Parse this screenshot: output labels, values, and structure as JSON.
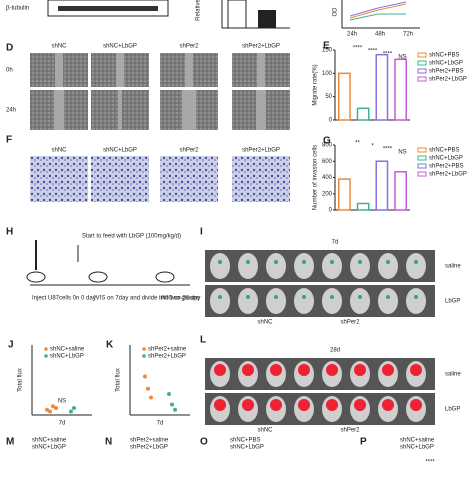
{
  "top": {
    "blot_label": "β-tubulin",
    "relative_label": "Relative",
    "od_label": "OD",
    "od_xticks": [
      "24h",
      "48h",
      "72h"
    ]
  },
  "D": {
    "label": "D",
    "columns": [
      "shNC",
      "shNC+LbGP",
      "shPer2",
      "shPer2+LbGP"
    ],
    "rows": [
      "0h",
      "24h"
    ]
  },
  "E": {
    "label": "E",
    "type": "bar",
    "y_label": "Migrate rate(%)",
    "categories": [
      "shNC+PBS",
      "shNC+LbGP",
      "shPer2+PBS",
      "shPer2+LbGP"
    ],
    "colors": [
      "#f0883a",
      "#3cb48a",
      "#8a6fe0",
      "#c45bd6"
    ],
    "values": [
      100,
      25,
      140,
      130
    ],
    "ylim": [
      0,
      150
    ],
    "yticks": [
      0,
      50,
      100,
      150
    ],
    "annotations": [
      "****",
      "****",
      "****",
      "NS"
    ]
  },
  "F": {
    "label": "F",
    "columns": [
      "shNC",
      "shNC+LbGP",
      "shPer2",
      "shPer2+LbGP"
    ]
  },
  "G": {
    "label": "G",
    "type": "bar",
    "y_label": "Number of invasion cells",
    "categories": [
      "shNC+PBS",
      "shNC+LbGP",
      "shPer2+PBS",
      "shPer2+LbGP"
    ],
    "colors": [
      "#f0883a",
      "#3cb48a",
      "#8a6fe0",
      "#c45bd6"
    ],
    "values": [
      380,
      80,
      600,
      470
    ],
    "ylim": [
      0,
      800
    ],
    "yticks": [
      0,
      200,
      400,
      600,
      800
    ],
    "annotations": [
      "**",
      "*",
      "****",
      "NS"
    ]
  },
  "H": {
    "label": "H",
    "feed": "Start to feed with LbGP (100mg/kg/d)",
    "step1": "Inject U87cells 0n 0 day",
    "step2": "IVIS on 7day and divide into two groups",
    "step3": "IVIS on 28 day"
  },
  "I": {
    "label": "I",
    "time": "7d",
    "rows": [
      "saline",
      "LbGP"
    ],
    "groups": [
      "shNC",
      "shPer2"
    ]
  },
  "J": {
    "label": "J",
    "type": "dots",
    "y_label": "Total flux",
    "x_label": "7d",
    "annotation": "NS",
    "series": [
      {
        "name": "shNC+saline",
        "color": "#f0883a",
        "values": [
          0.3,
          0.2,
          0.5,
          0.4
        ]
      },
      {
        "name": "shNC+LbGP",
        "color": "#3cb48a",
        "values": [
          0.2,
          0.4
        ]
      }
    ],
    "ylim": [
      0,
      4
    ]
  },
  "K": {
    "label": "K",
    "type": "dots",
    "y_label": "Total flux",
    "x_label": "7d",
    "series": [
      {
        "name": "shPer2+saline",
        "color": "#f0883a",
        "values": [
          2.2,
          1.5,
          1.0
        ]
      },
      {
        "name": "shPer2+LbGP",
        "color": "#3cb48a",
        "values": [
          1.2,
          0.6,
          0.3
        ]
      }
    ],
    "ylim": [
      0,
      4
    ]
  },
  "L": {
    "label": "L",
    "time": "28d",
    "rows": [
      "saline",
      "LbGP"
    ],
    "groups": [
      "shNC",
      "shPer2"
    ]
  },
  "M": {
    "label": "M",
    "legend": [
      "shNC+saline",
      "shNC+LbGP"
    ]
  },
  "N": {
    "label": "N",
    "legend": [
      "shPer2+saline",
      "shPer2+LbGP"
    ]
  },
  "O": {
    "label": "O",
    "legend": [
      "shNC+PBS",
      "shNC+LbGP"
    ]
  },
  "P": {
    "label": "P",
    "legend": [
      "shNC+saline",
      "shNC+LbGP"
    ],
    "annotation": "****"
  }
}
